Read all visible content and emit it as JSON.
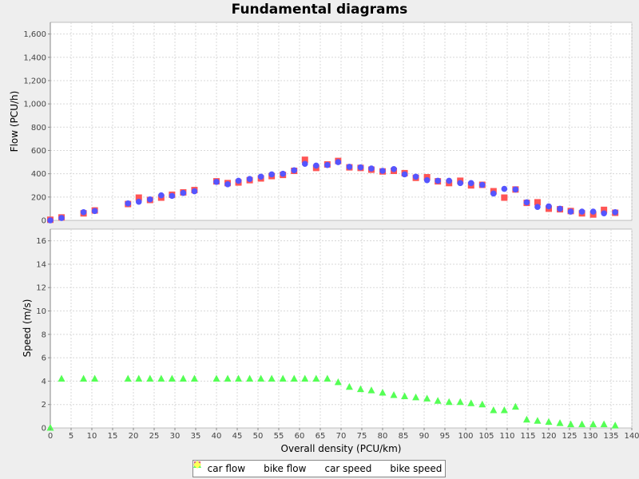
{
  "chart_data": {
    "type": "scatter",
    "title": "Fundamental diagrams",
    "xlabel": "Overall density (PCU/km)",
    "xlim": [
      0,
      140
    ],
    "x_ticks": [
      0,
      5,
      10,
      15,
      20,
      25,
      30,
      35,
      40,
      45,
      50,
      55,
      60,
      65,
      70,
      75,
      80,
      85,
      90,
      95,
      100,
      105,
      110,
      115,
      120,
      125,
      130,
      135,
      140
    ],
    "grid": true,
    "legend_position": "bottom",
    "panels": [
      {
        "ylabel": "Flow (PCU/h)",
        "ylim": [
          0,
          1700
        ],
        "y_ticks": [
          0,
          200,
          400,
          600,
          800,
          1000,
          1200,
          1400,
          1600
        ],
        "y_tick_labels": [
          "0",
          "200",
          "400",
          "600",
          "800",
          "1,000",
          "1,200",
          "1,400",
          "1,600"
        ],
        "series": [
          {
            "name": "car flow",
            "marker": "square",
            "color": "#ff5555",
            "x": [
              0,
              2.7,
              8,
              10.7,
              18.7,
              21.3,
              24,
              26.7,
              29.3,
              32,
              34.7,
              40,
              42.7,
              45.3,
              48,
              50.7,
              53.3,
              56,
              58.7,
              61.3,
              64,
              66.7,
              69.3,
              72,
              74.7,
              77.3,
              80,
              82.7,
              85.3,
              88,
              90.7,
              93.3,
              96,
              98.7,
              101.3,
              104,
              106.7,
              109.3,
              112,
              114.7,
              117.3,
              120,
              122.7,
              125.3,
              128,
              130.7,
              133.3,
              136
            ],
            "y": [
              5,
              25,
              60,
              85,
              140,
              195,
              175,
              195,
              220,
              240,
              260,
              335,
              320,
              325,
              345,
              360,
              380,
              390,
              425,
              520,
              450,
              480,
              510,
              455,
              450,
              435,
              420,
              425,
              405,
              365,
              370,
              335,
              320,
              340,
              300,
              305,
              250,
              195,
              265,
              150,
              155,
              100,
              95,
              80,
              60,
              50,
              90,
              65
            ]
          },
          {
            "name": "bike flow",
            "marker": "circle",
            "color": "#5555ff",
            "x": [
              0,
              2.7,
              8,
              10.7,
              18.7,
              21.3,
              24,
              26.7,
              29.3,
              32,
              34.7,
              40,
              42.7,
              45.3,
              48,
              50.7,
              53.3,
              56,
              58.7,
              61.3,
              64,
              66.7,
              69.3,
              72,
              74.7,
              77.3,
              80,
              82.7,
              85.3,
              88,
              90.7,
              93.3,
              96,
              98.7,
              101.3,
              104,
              106.7,
              109.3,
              112,
              114.7,
              117.3,
              120,
              122.7,
              125.3,
              128,
              130.7,
              133.3,
              136
            ],
            "y": [
              0,
              20,
              70,
              80,
              145,
              160,
              180,
              215,
              210,
              235,
              250,
              330,
              310,
              340,
              355,
              375,
              395,
              400,
              430,
              485,
              470,
              475,
              500,
              460,
              455,
              445,
              425,
              440,
              395,
              375,
              345,
              340,
              340,
              320,
              320,
              305,
              230,
              270,
              265,
              155,
              115,
              120,
              100,
              75,
              75,
              75,
              60,
              70
            ]
          }
        ]
      },
      {
        "ylabel": "Speed (m/s)",
        "ylim": [
          0,
          17
        ],
        "y_ticks": [
          0,
          2,
          4,
          6,
          8,
          10,
          12,
          14,
          16
        ],
        "y_tick_labels": [
          "0",
          "2",
          "4",
          "6",
          "8",
          "10",
          "12",
          "14",
          "16"
        ],
        "series": [
          {
            "name": "car speed",
            "marker": "triangle",
            "color": "#55ff55",
            "x": [
              0,
              2.7,
              8,
              10.7,
              18.7,
              21.3,
              24,
              26.7,
              29.3,
              32,
              34.7,
              40,
              42.7,
              45.3,
              48,
              50.7,
              53.3,
              56,
              58.7,
              61.3,
              64,
              66.7,
              69.3,
              72,
              74.7,
              77.3,
              80,
              82.7,
              85.3,
              88,
              90.7,
              93.3,
              96,
              98.7,
              101.3,
              104,
              106.7,
              109.3,
              112,
              114.7,
              117.3,
              120,
              122.7,
              125.3,
              128,
              130.7,
              133.3,
              136
            ],
            "y": [
              0,
              4.2,
              4.2,
              4.2,
              4.2,
              4.2,
              4.2,
              4.2,
              4.2,
              4.2,
              4.2,
              4.2,
              4.2,
              4.2,
              4.2,
              4.2,
              4.2,
              4.2,
              4.2,
              4.2,
              4.2,
              4.2,
              3.9,
              3.5,
              3.3,
              3.2,
              3.0,
              2.8,
              2.7,
              2.6,
              2.5,
              2.3,
              2.2,
              2.2,
              2.1,
              2.0,
              1.5,
              1.5,
              1.8,
              0.7,
              0.6,
              0.5,
              0.4,
              0.3,
              0.3,
              0.3,
              0.3,
              0.2
            ]
          },
          {
            "name": "bike speed",
            "marker": "diamond",
            "color": "#ffff55",
            "x": [],
            "y": []
          }
        ]
      }
    ]
  }
}
